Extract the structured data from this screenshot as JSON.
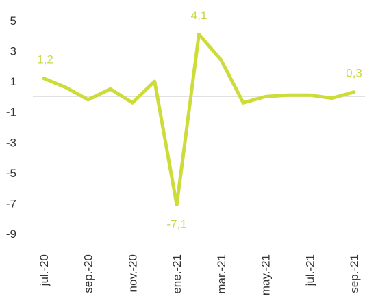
{
  "chart_data": {
    "type": "line",
    "categories": [
      "jul.-20",
      null,
      "sep.-20",
      null,
      "nov.-20",
      null,
      "ene.-21",
      null,
      "mar.-21",
      null,
      "may.-21",
      null,
      "jul.-21",
      null,
      "sep.-21"
    ],
    "values": [
      1.2,
      0.6,
      -0.2,
      0.5,
      -0.4,
      1.0,
      -7.1,
      4.1,
      2.4,
      -0.4,
      0.0,
      0.1,
      0.1,
      -0.1,
      0.3
    ],
    "value_labels": [
      "1,2",
      null,
      null,
      null,
      null,
      null,
      "-7,1",
      "4,1",
      null,
      null,
      null,
      null,
      null,
      null,
      "0,3"
    ],
    "color": "#cddc39",
    "ylim": [
      -9,
      5
    ],
    "yticks": [
      -9,
      -7,
      -5,
      -3,
      -1,
      1,
      3,
      5
    ]
  }
}
